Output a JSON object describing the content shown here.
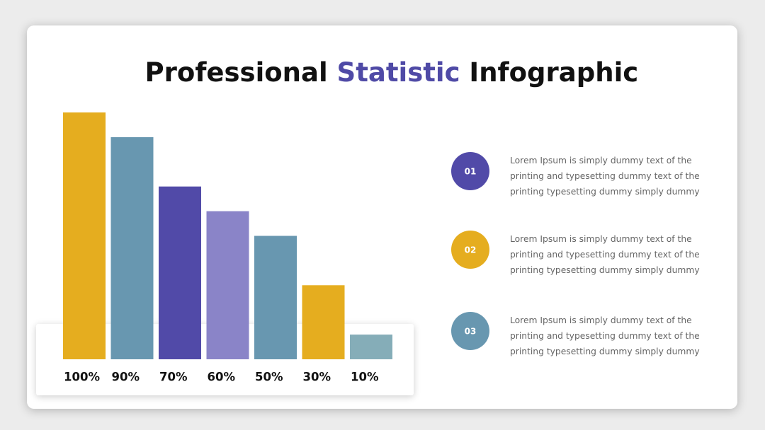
{
  "title_parts": [
    "Professional ",
    "Statistic",
    " Infographic"
  ],
  "title_colors": [
    "#111111",
    "#4f4aa6",
    "#111111"
  ],
  "chart_data": {
    "type": "bar",
    "values": [
      100,
      90,
      70,
      60,
      50,
      30,
      10
    ],
    "value_labels": [
      "100%",
      "90%",
      "70%",
      "60%",
      "50%",
      "30%",
      "10%"
    ],
    "colors": [
      "#e5ad1f",
      "#6897b0",
      "#514aa8",
      "#8a84c8",
      "#6897b0",
      "#e5ad1f",
      "#85adb8"
    ],
    "ylim": [
      0,
      100
    ]
  },
  "items": [
    {
      "number": "01",
      "color": "#514aa8",
      "text": "Lorem Ipsum is simply dummy text of the printing and typesetting dummy text of the printing typesetting dummy simply dummy"
    },
    {
      "number": "02",
      "color": "#e5ad1f",
      "text": "Lorem Ipsum is simply dummy text of the printing and typesetting dummy text of the printing typesetting dummy simply dummy"
    },
    {
      "number": "03",
      "color": "#6897b0",
      "text": "Lorem Ipsum is simply dummy text of the printing and typesetting dummy text of the printing typesetting dummy simply dummy"
    }
  ]
}
